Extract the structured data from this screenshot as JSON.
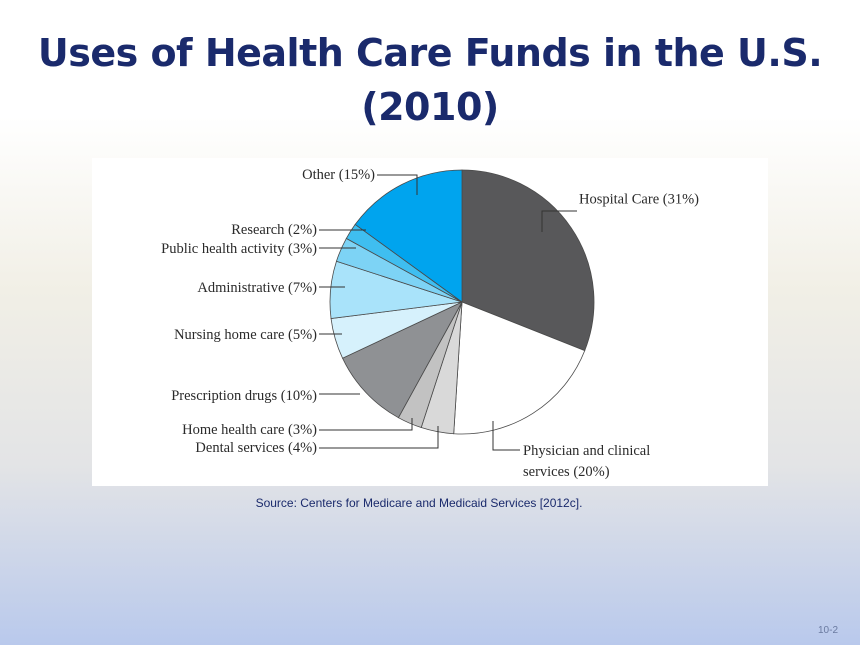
{
  "slide": {
    "title": "Uses of Health Care Funds in the U.S. (2010)",
    "source": "Source:  Centers for Medicare and Medicaid Services [2012c].",
    "page_number": "10-2"
  },
  "chart_data": {
    "type": "pie",
    "title": "",
    "slices": [
      {
        "label": "Hospital Care (31%)",
        "value": 31,
        "color": "#58585a"
      },
      {
        "label": "Physician and clinical services (20%)",
        "value": 20,
        "color": "#ffffff"
      },
      {
        "label": "Dental services (4%)",
        "value": 4,
        "color": "#d9d9d9"
      },
      {
        "label": "Home health care (3%)",
        "value": 3,
        "color": "#c2c2c2"
      },
      {
        "label": "Prescription drugs (10%)",
        "value": 10,
        "color": "#8f9194"
      },
      {
        "label": "Nursing home care (5%)",
        "value": 5,
        "color": "#d6f1fc"
      },
      {
        "label": "Administrative (7%)",
        "value": 7,
        "color": "#a9e3fa"
      },
      {
        "label": "Public health activity (3%)",
        "value": 3,
        "color": "#7dd3f5"
      },
      {
        "label": "Research (2%)",
        "value": 2,
        "color": "#3fbef0"
      },
      {
        "label": "Other (15%)",
        "value": 15,
        "color": "#00a4ee"
      }
    ]
  }
}
